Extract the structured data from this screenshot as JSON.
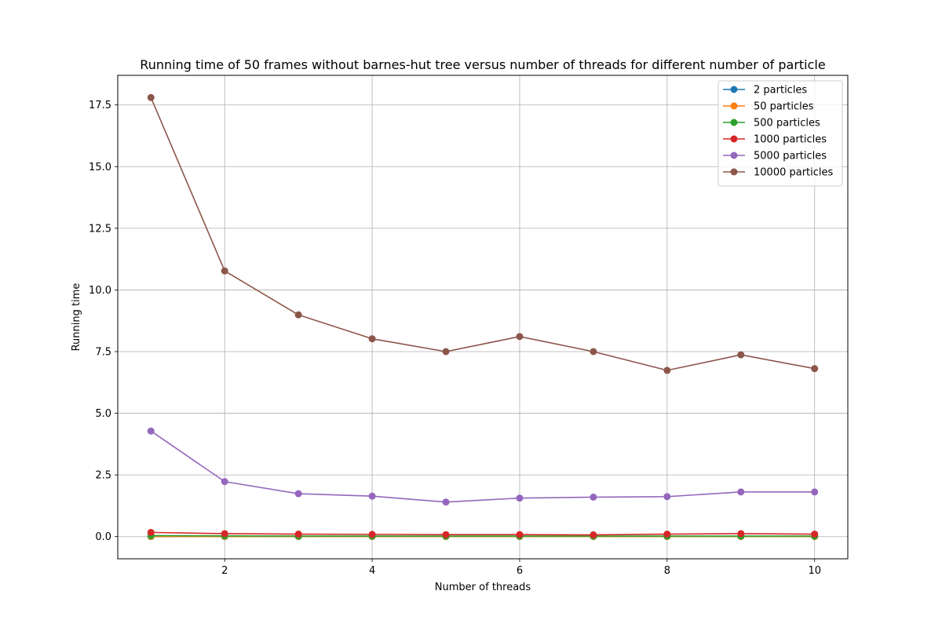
{
  "chart_data": {
    "type": "line",
    "title": "Running time of 50 frames without barnes-hut tree versus number of threads for different number of particle",
    "xlabel": "Number of threads",
    "ylabel": "Running time",
    "xlim": [
      0.55,
      10.45
    ],
    "ylim": [
      -0.9,
      18.7
    ],
    "xticks": [
      2,
      4,
      6,
      8,
      10
    ],
    "xtick_labels": [
      "2",
      "4",
      "6",
      "8",
      "10"
    ],
    "yticks": [
      0.0,
      2.5,
      5.0,
      7.5,
      10.0,
      12.5,
      15.0,
      17.5
    ],
    "ytick_labels": [
      "0.0",
      "2.5",
      "5.0",
      "7.5",
      "10.0",
      "12.5",
      "15.0",
      "17.5"
    ],
    "grid": true,
    "legend_position": "top-right",
    "marker": "circle",
    "x": [
      1,
      2,
      3,
      4,
      5,
      6,
      7,
      8,
      9,
      10
    ],
    "series": [
      {
        "name": "2 particles",
        "color": "#1f77b4",
        "values": [
          0.002,
          0.003,
          0.003,
          0.003,
          0.003,
          0.003,
          0.003,
          0.003,
          0.003,
          0.003
        ]
      },
      {
        "name": "50 particles",
        "color": "#ff7f0e",
        "values": [
          0.005,
          0.005,
          0.005,
          0.005,
          0.005,
          0.005,
          0.005,
          0.005,
          0.005,
          0.005
        ]
      },
      {
        "name": "500 particles",
        "color": "#2ca02c",
        "values": [
          0.04,
          0.03,
          0.02,
          0.02,
          0.02,
          0.02,
          0.02,
          0.02,
          0.02,
          0.02
        ]
      },
      {
        "name": "1000 particles",
        "color": "#d62728",
        "values": [
          0.17,
          0.12,
          0.1,
          0.09,
          0.08,
          0.08,
          0.07,
          0.1,
          0.12,
          0.1
        ]
      },
      {
        "name": "5000 particles",
        "color": "#9467bd",
        "values": [
          4.28,
          2.23,
          1.74,
          1.64,
          1.4,
          1.56,
          1.6,
          1.62,
          1.81,
          1.81
        ]
      },
      {
        "name": "10000 particles",
        "color": "#8c564b",
        "values": [
          17.8,
          10.77,
          8.99,
          8.02,
          7.5,
          8.11,
          7.5,
          6.74,
          7.37,
          6.81
        ]
      }
    ]
  }
}
